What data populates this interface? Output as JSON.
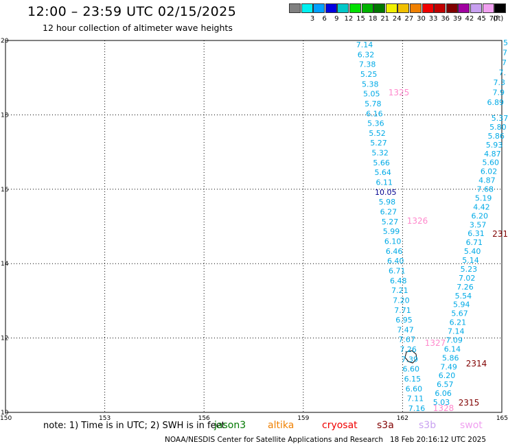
{
  "header": {
    "title": "12:00 – 23:59 UTC 02/15/2025",
    "subtitle": "12 hour collection of altimeter wave heights"
  },
  "legend": {
    "unit": "(ft)",
    "items": [
      {
        "color": "#808080",
        "label": ""
      },
      {
        "color": "#00f0f0",
        "label": "3"
      },
      {
        "color": "#00a0ff",
        "label": "6"
      },
      {
        "color": "#0000e0",
        "label": "9"
      },
      {
        "color": "#00c8c8",
        "label": "12"
      },
      {
        "color": "#00e000",
        "label": "15"
      },
      {
        "color": "#00b400",
        "label": "18"
      },
      {
        "color": "#007800",
        "label": "21"
      },
      {
        "color": "#f0f000",
        "label": "24"
      },
      {
        "color": "#f0c000",
        "label": "27"
      },
      {
        "color": "#f08000",
        "label": "30"
      },
      {
        "color": "#f00000",
        "label": "33"
      },
      {
        "color": "#c00000",
        "label": "36"
      },
      {
        "color": "#800000",
        "label": "39"
      },
      {
        "color": "#a000a0",
        "label": "42"
      },
      {
        "color": "#c8a0f0",
        "label": "45"
      },
      {
        "color": "#f0a0f0",
        "label": "70"
      },
      {
        "color": "#000000",
        "label": ""
      }
    ]
  },
  "axes": {
    "x_ticks": [
      "150",
      "153",
      "156",
      "159",
      "162",
      "165"
    ],
    "y_ticks": [
      "20",
      "18",
      "16",
      "14",
      "12",
      "10"
    ]
  },
  "colors": {
    "cyan_text": "#00aae6",
    "pink_text": "#ff88cc",
    "darkred_text": "#800000",
    "navy_text": "#000090",
    "grid": "#000000"
  },
  "track_a": [
    "7.14",
    "6.32",
    "7.38",
    "5.25",
    "5.38",
    "5.05",
    "5.78",
    "6.16",
    "5.36",
    "5.52",
    "5.27",
    "5.32",
    "5.66",
    "5.64",
    "6.11",
    "10.05",
    "5.98",
    "6.27",
    "5.27",
    "5.99",
    "6.10",
    "6.46",
    "6.40",
    "6.71",
    "6.48",
    "7.21",
    "7.20",
    "7.71",
    "6.95",
    "7.47",
    "7.67",
    "7.26",
    "7.39",
    "6.60",
    "6.15",
    "6.60",
    "7.11",
    "7.16"
  ],
  "track_b": [
    "5.37",
    "5.80",
    "5.86",
    "5.93",
    "4.87",
    "5.60",
    "6.02",
    "4.87",
    "7.68",
    "5.19",
    "4.42",
    "6.20",
    "3.57",
    "6.31",
    "6.71",
    "5.40",
    "5.14",
    "5.23",
    "7.02",
    "7.26",
    "5.54",
    "5.94",
    "5.67",
    "6.21",
    "7.14",
    "7.09",
    "6.14",
    "5.86",
    "7.49",
    "6.20",
    "6.57",
    "6.06",
    "5.03"
  ],
  "track_b_top": [
    "5",
    "7",
    "7",
    "7.",
    "7.3",
    "7.9",
    "6.89"
  ],
  "time_labels": {
    "pink": [
      "1325",
      "1326",
      "1327",
      "1328"
    ],
    "darkred": [
      "2314",
      "2314",
      "2315"
    ],
    "darkred_edge": "231"
  },
  "footer": {
    "note": "note:  1) Time is in UTC; 2) SWH is in feet",
    "satellites": [
      {
        "name": "jason3",
        "color": "#007800"
      },
      {
        "name": "altika",
        "color": "#f08000"
      },
      {
        "name": "cryosat",
        "color": "#f00000"
      },
      {
        "name": "s3a",
        "color": "#800000"
      },
      {
        "name": "s3b",
        "color": "#c8a0f0"
      },
      {
        "name": "swot",
        "color": "#f0a0f0"
      }
    ],
    "credit": "NOAA/NESDIS Center for Satellite Applications and Research",
    "timestamp": "18 Feb 20:16:12 UTC 2025"
  }
}
